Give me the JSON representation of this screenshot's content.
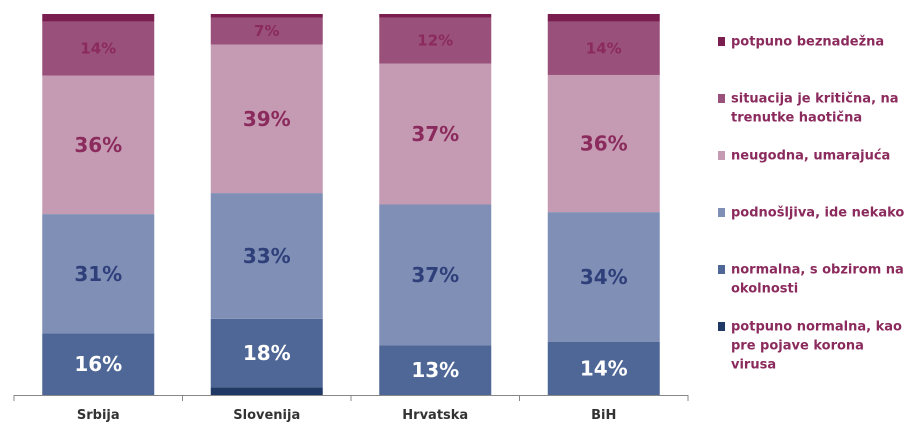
{
  "chart_data": {
    "type": "bar",
    "stacked": true,
    "normalized_percent": true,
    "categories": [
      "Srbija",
      "Slovenija",
      "Hrvatska",
      "BiH"
    ],
    "series": [
      {
        "name": "potpuno normalna, kao pre pojave korona virusa",
        "color": "#203864",
        "values": [
          0,
          2,
          0,
          0
        ],
        "labels": [
          "",
          "",
          "",
          ""
        ]
      },
      {
        "name": "normalna, s obzirom na okolnosti",
        "color": "#4F6796",
        "values": [
          16,
          18,
          13,
          14
        ],
        "labels": [
          "16%",
          "18%",
          "13%",
          "14%"
        ]
      },
      {
        "name": "podnošljiva, ide nekako",
        "color": "#7F8FB6",
        "values": [
          31,
          33,
          37,
          34
        ],
        "labels": [
          "31%",
          "33%",
          "37%",
          "34%"
        ]
      },
      {
        "name": "neugodna, umarajuća",
        "color": "#C59BB3",
        "values": [
          36,
          39,
          37,
          36
        ],
        "labels": [
          "36%",
          "39%",
          "37%",
          "36%"
        ]
      },
      {
        "name": "situacija je kritična, na trenutke haotična",
        "color": "#99507A",
        "values": [
          14,
          7,
          12,
          14
        ],
        "labels": [
          "14%",
          "7%",
          "12%",
          "14%"
        ]
      },
      {
        "name": "potpuno beznadežna",
        "color": "#7A1E50",
        "values": [
          2,
          1,
          1,
          2
        ],
        "labels": [
          "",
          "",
          "",
          ""
        ]
      }
    ],
    "legend": {
      "position": "right",
      "order_top_to_bottom": [
        {
          "series": 5,
          "lines": [
            "potpuno beznadežna"
          ]
        },
        {
          "series": 4,
          "lines": [
            "situacija je kritična, na",
            "trenutke haotična"
          ]
        },
        {
          "series": 3,
          "lines": [
            "neugodna, umarajuća"
          ]
        },
        {
          "series": 2,
          "lines": [
            "podnošljiva, ide nekako"
          ]
        },
        {
          "series": 1,
          "lines": [
            "normalna, s obzirom na",
            "okolnosti"
          ]
        },
        {
          "series": 0,
          "lines": [
            "potpuno normalna, kao",
            "pre pojave korona",
            "virusa"
          ]
        }
      ]
    },
    "label_colors": {
      "dark_segments": "#ffffff",
      "light_segments": "#2E3F7A",
      "pink_segments": "#8B2A5C"
    },
    "legend_text_color": "#8B2A5C",
    "axis_color": "#888888",
    "ylim": [
      0,
      100
    ],
    "grid": false
  }
}
